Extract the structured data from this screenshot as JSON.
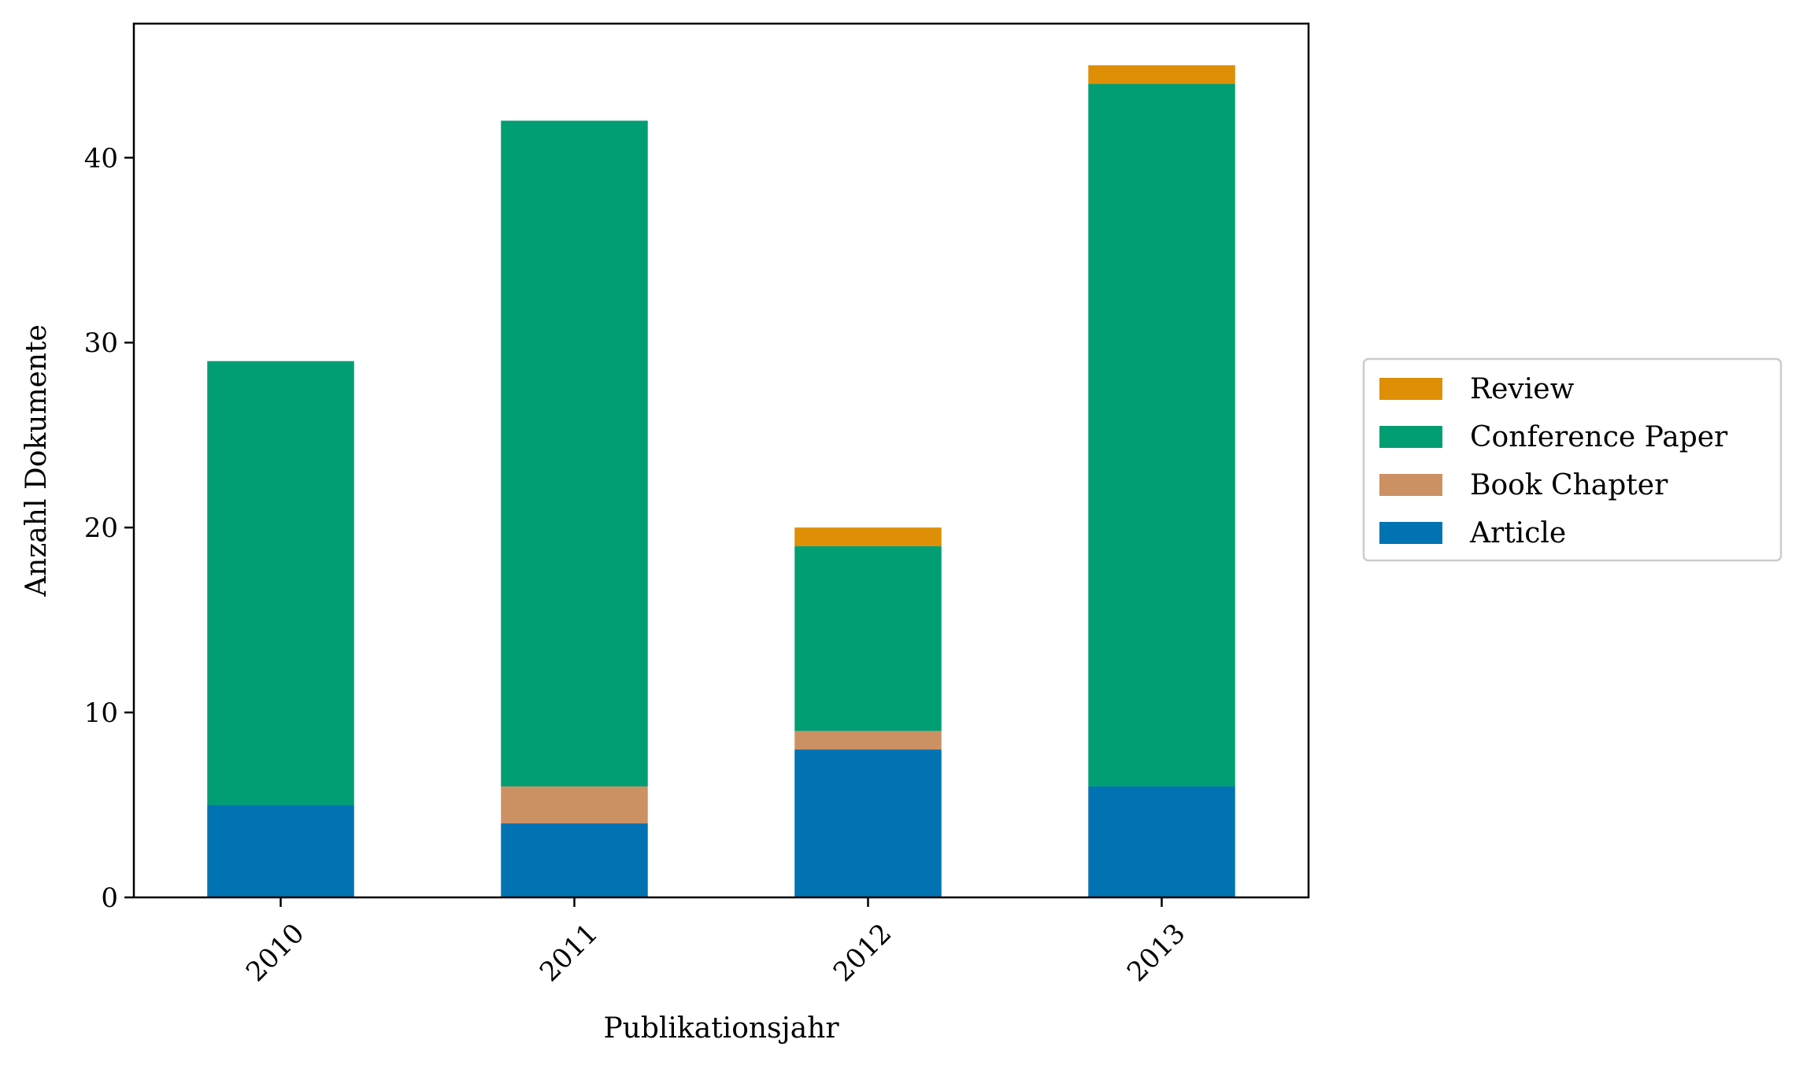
{
  "chart_data": {
    "type": "bar",
    "stacked": true,
    "title": "",
    "xlabel": "Publikationsjahr",
    "ylabel": "Anzahl Dokumente",
    "categories": [
      "2010",
      "2011",
      "2012",
      "2013"
    ],
    "ylim": [
      0,
      47.25
    ],
    "yticks": [
      0,
      10,
      20,
      30,
      40
    ],
    "grid": false,
    "legend_position": "right",
    "series": [
      {
        "name": "Article",
        "color": "#0173b2",
        "values": [
          5,
          4,
          8,
          6
        ]
      },
      {
        "name": "Book Chapter",
        "color": "#cc9163",
        "values": [
          0,
          2,
          1,
          0
        ]
      },
      {
        "name": "Conference Paper",
        "color": "#029e73",
        "values": [
          24,
          36,
          10,
          38
        ]
      },
      {
        "name": "Review",
        "color": "#de8f05",
        "values": [
          0,
          0,
          1,
          1
        ]
      }
    ],
    "legend_order": [
      "Review",
      "Conference Paper",
      "Book Chapter",
      "Article"
    ]
  }
}
